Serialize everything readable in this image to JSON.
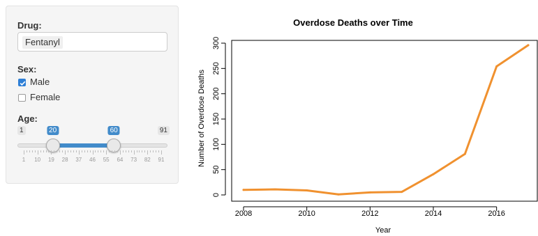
{
  "panel": {
    "drug_label": "Drug:",
    "drug_value": "Fentanyl",
    "sex_label": "Sex:",
    "sex_options": [
      {
        "label": "Male",
        "checked": true
      },
      {
        "label": "Female",
        "checked": false
      }
    ],
    "age_label": "Age:",
    "age_slider": {
      "min": 1,
      "max": 91,
      "low": 20,
      "high": 60,
      "min_label": "1",
      "max_label": "91",
      "low_label": "20",
      "high_label": "60",
      "ticks": [
        1,
        10,
        19,
        28,
        37,
        46,
        55,
        64,
        73,
        82,
        91
      ],
      "tick_labels": [
        "1",
        "10",
        "19",
        "28",
        "37",
        "46",
        "55",
        "64",
        "73",
        "82",
        "91"
      ],
      "accent": "#428bca"
    }
  },
  "chart_data": {
    "type": "line",
    "title": "Overdose Deaths over Time",
    "xlabel": "Year",
    "ylabel": "Number of Overdose Deaths",
    "x": [
      2008,
      2009,
      2010,
      2011,
      2012,
      2013,
      2014,
      2015,
      2016,
      2017
    ],
    "series": [
      {
        "values": [
          10,
          11,
          9,
          1,
          5,
          6,
          41,
          81,
          254,
          296
        ]
      }
    ],
    "xlim": [
      2008,
      2017
    ],
    "ylim": [
      0,
      300
    ],
    "xticks": [
      2008,
      2010,
      2012,
      2014,
      2016
    ],
    "xtick_labels": [
      "2008",
      "2010",
      "2012",
      "2014",
      "2016"
    ],
    "yticks": [
      0,
      50,
      100,
      150,
      200,
      250,
      300
    ],
    "ytick_labels": [
      "0",
      "50",
      "100",
      "150",
      "200",
      "250",
      "300"
    ],
    "grid": false,
    "line_color": "#f0912f"
  }
}
